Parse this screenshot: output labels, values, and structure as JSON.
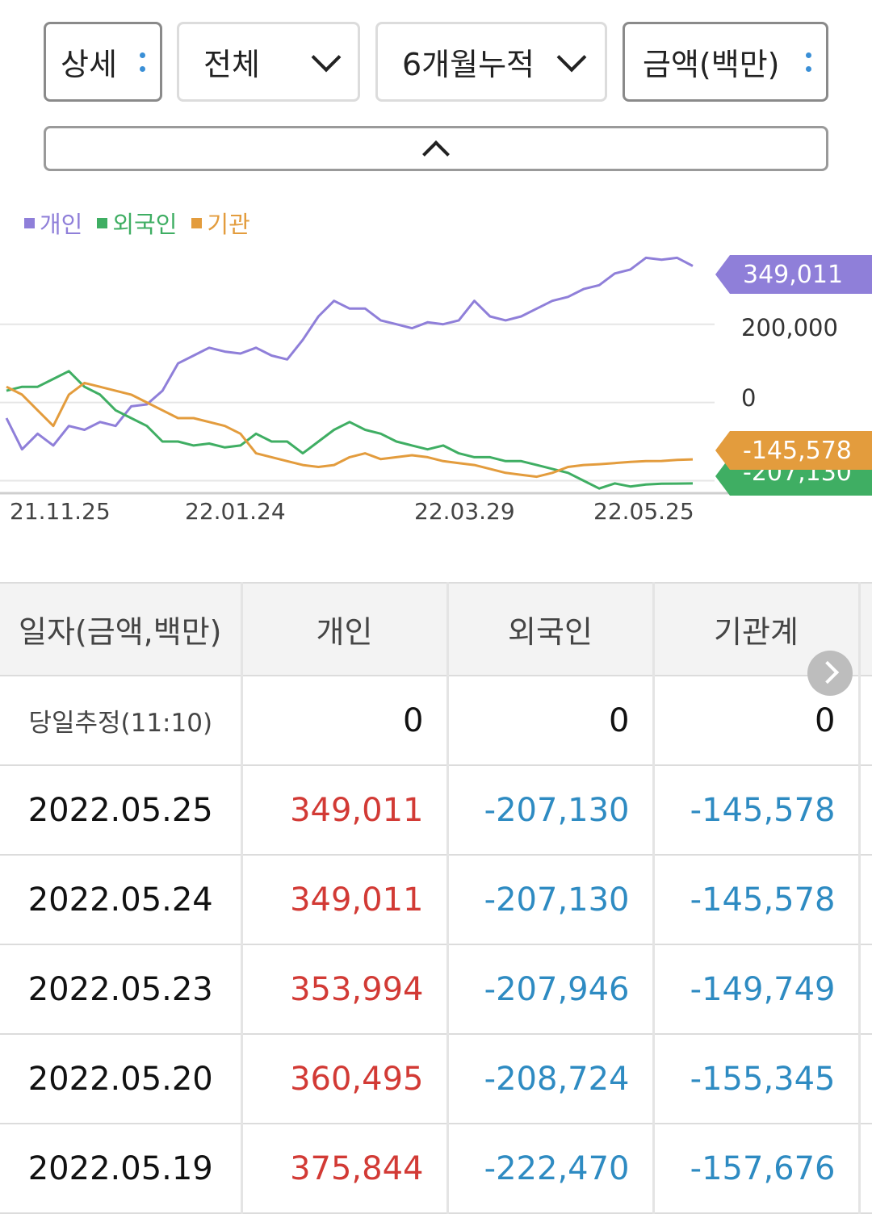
{
  "controls": {
    "view": "상세",
    "scope": "전체",
    "period": "6개월누적",
    "unit": "금액(백만)"
  },
  "legend": [
    {
      "name": "개인",
      "color": "#8f7fd9"
    },
    {
      "name": "외국인",
      "color": "#3fae63"
    },
    {
      "name": "기관",
      "color": "#e39c3d"
    }
  ],
  "chart_data": {
    "type": "line",
    "x_ticks": [
      "21.11.25",
      "22.01.24",
      "22.03.29",
      "22.05.25"
    ],
    "y_ticks": [
      "200,000",
      "0"
    ],
    "ylim": [
      -230000,
      410000
    ],
    "end_labels": [
      "349,011",
      "-145,578",
      "-207,130"
    ],
    "series": [
      {
        "name": "개인",
        "color": "#8f7fd9",
        "values": [
          -40000,
          -120000,
          -80000,
          -110000,
          -60000,
          -70000,
          -50000,
          -60000,
          -10000,
          -5000,
          30000,
          100000,
          120000,
          140000,
          130000,
          125000,
          140000,
          120000,
          110000,
          160000,
          220000,
          260000,
          240000,
          240000,
          210000,
          200000,
          190000,
          205000,
          200000,
          210000,
          260000,
          220000,
          210000,
          220000,
          240000,
          260000,
          270000,
          290000,
          300000,
          330000,
          340000,
          370000,
          365000,
          370000,
          349011
        ]
      },
      {
        "name": "외국인",
        "color": "#3fae63",
        "values": [
          30000,
          40000,
          40000,
          60000,
          80000,
          40000,
          20000,
          -20000,
          -40000,
          -60000,
          -100000,
          -100000,
          -110000,
          -105000,
          -115000,
          -110000,
          -80000,
          -100000,
          -100000,
          -130000,
          -100000,
          -70000,
          -50000,
          -70000,
          -80000,
          -100000,
          -110000,
          -120000,
          -110000,
          -130000,
          -140000,
          -140000,
          -150000,
          -150000,
          -160000,
          -170000,
          -180000,
          -200000,
          -220000,
          -207000,
          -215000,
          -210000,
          -208000,
          -207500,
          -207130
        ]
      },
      {
        "name": "기관",
        "color": "#e39c3d",
        "values": [
          40000,
          20000,
          -20000,
          -60000,
          20000,
          50000,
          40000,
          30000,
          20000,
          0,
          -20000,
          -40000,
          -40000,
          -50000,
          -60000,
          -80000,
          -130000,
          -140000,
          -150000,
          -160000,
          -165000,
          -160000,
          -140000,
          -130000,
          -145000,
          -140000,
          -135000,
          -140000,
          -150000,
          -155000,
          -160000,
          -170000,
          -180000,
          -185000,
          -190000,
          -180000,
          -165000,
          -160000,
          -158000,
          -155000,
          -152000,
          -150000,
          -149749,
          -147000,
          -145578
        ]
      }
    ]
  },
  "table": {
    "headers": [
      "일자(금액,백만)",
      "개인",
      "외국인",
      "기관계"
    ],
    "estimate": {
      "label": "당일추정(11:10)",
      "values": [
        "0",
        "0",
        "0"
      ]
    },
    "rows": [
      {
        "date": "2022.05.25",
        "individual": "349,011",
        "foreign": "-207,130",
        "institution": "-145,578"
      },
      {
        "date": "2022.05.24",
        "individual": "349,011",
        "foreign": "-207,130",
        "institution": "-145,578"
      },
      {
        "date": "2022.05.23",
        "individual": "353,994",
        "foreign": "-207,946",
        "institution": "-149,749"
      },
      {
        "date": "2022.05.20",
        "individual": "360,495",
        "foreign": "-208,724",
        "institution": "-155,345"
      },
      {
        "date": "2022.05.19",
        "individual": "375,844",
        "foreign": "-222,470",
        "institution": "-157,676"
      }
    ]
  }
}
